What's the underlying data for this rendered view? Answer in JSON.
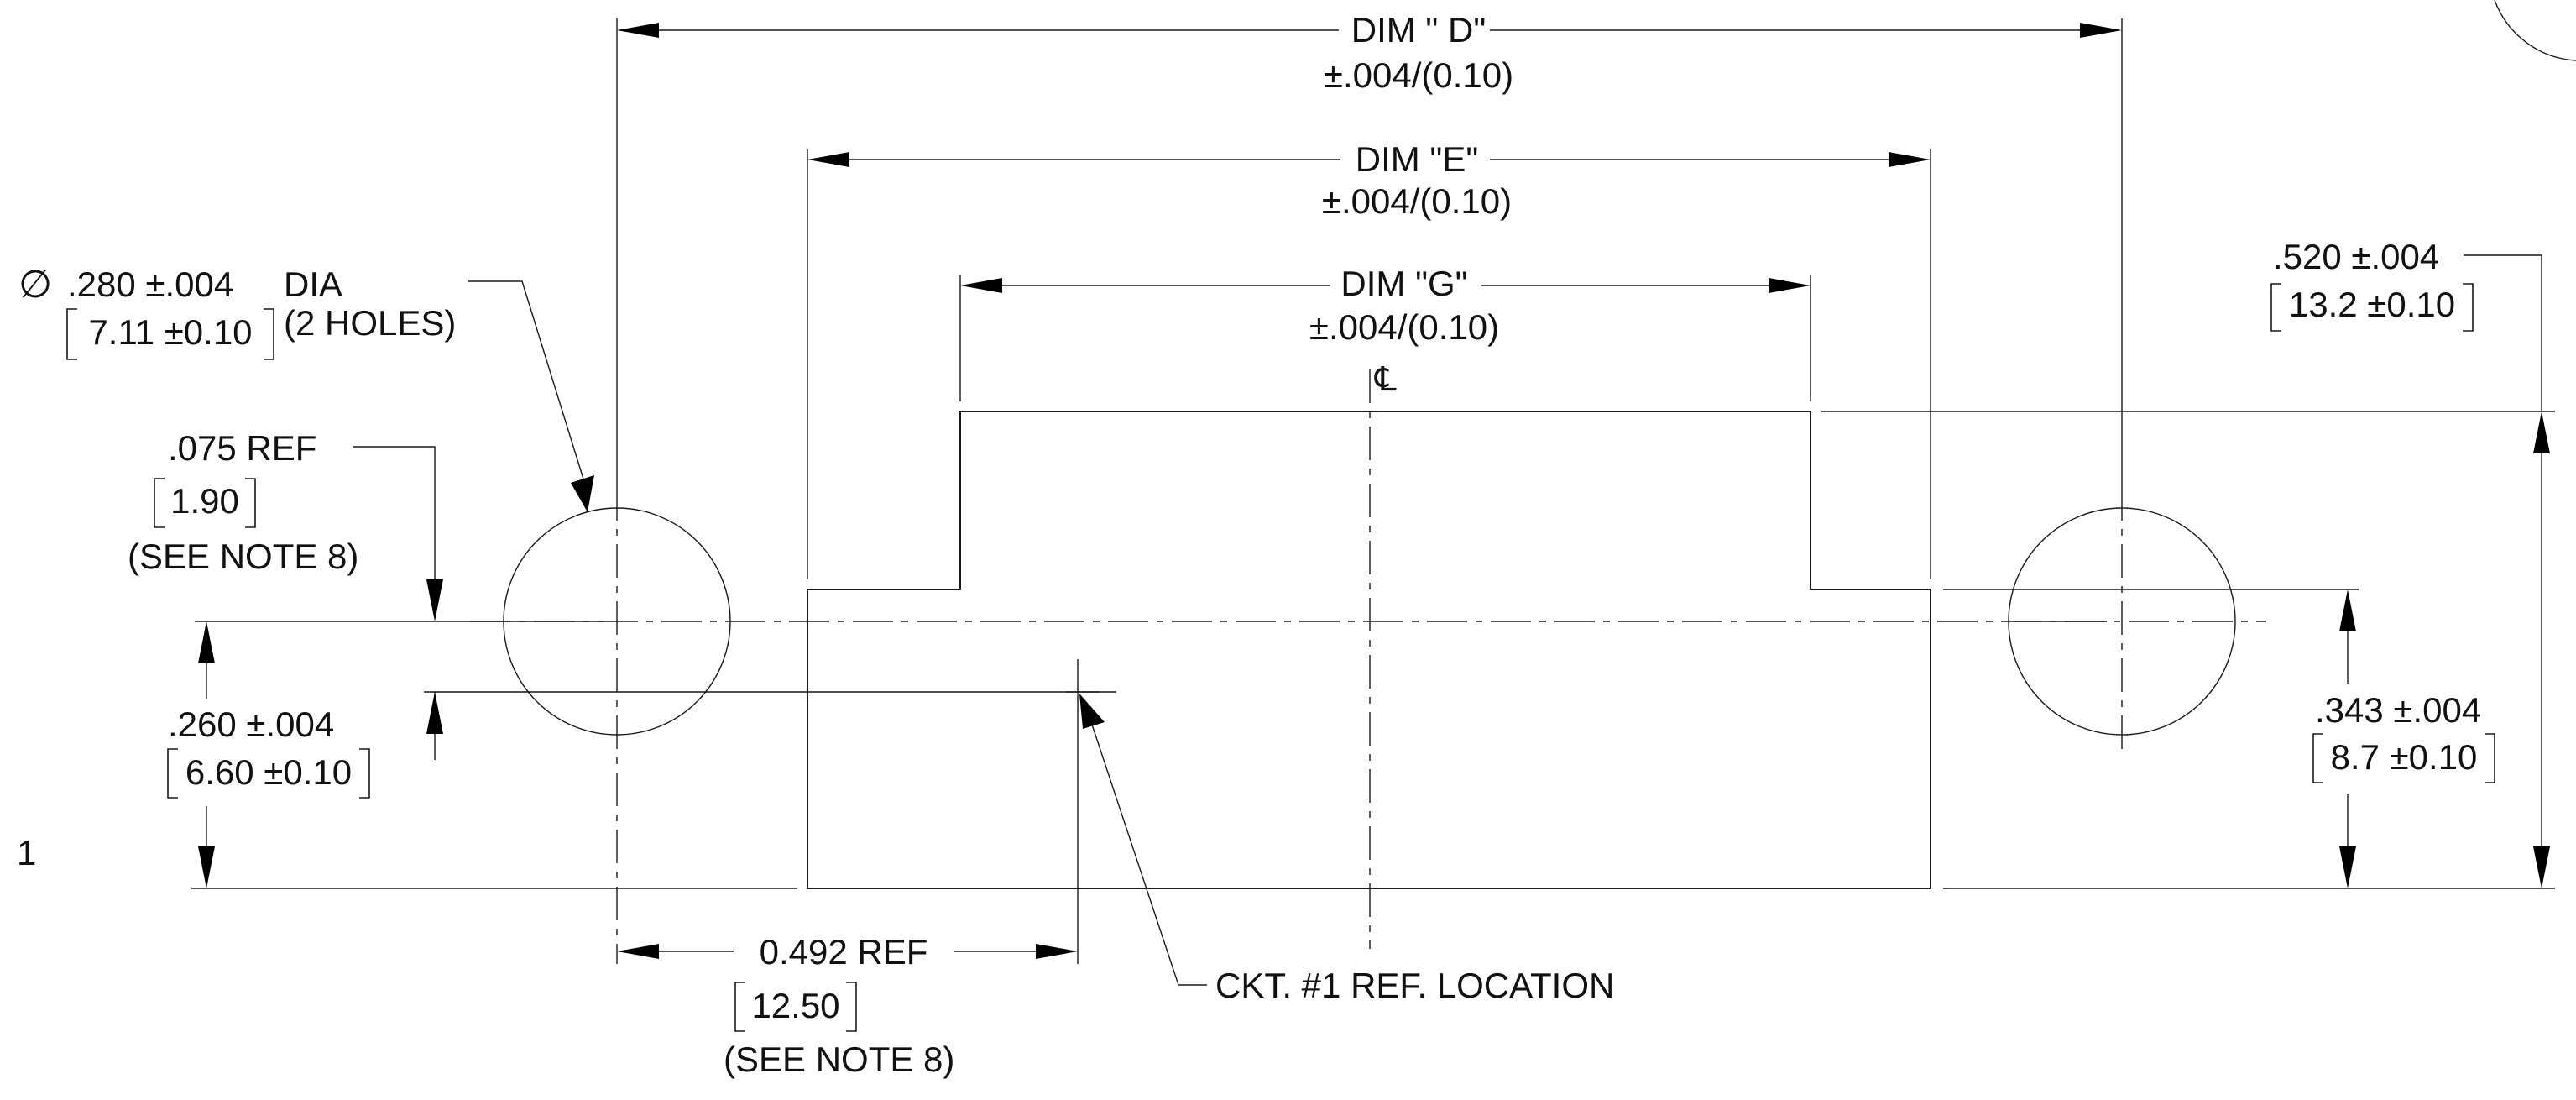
{
  "dimensions": {
    "dim_d": {
      "label": "DIM \" D\"",
      "tol": "±.004/(0.10)"
    },
    "dim_e": {
      "label": "DIM \"E\"",
      "tol": "±.004/(0.10)"
    },
    "dim_g": {
      "label": "DIM \"G\"",
      "tol": "±.004/(0.10)"
    },
    "hole_dia": {
      "symbol": "∅",
      "value": ".280 ±.004",
      "unit": "DIA",
      "metric": "7.11 ±0.10",
      "note": "(2 HOLES)"
    },
    "ref_075": {
      "value": ".075  REF",
      "metric": "1.90",
      "note": "(SEE NOTE 8)"
    },
    "dim_260": {
      "value": ".260 ±.004",
      "metric": "6.60 ±0.10"
    },
    "dim_520": {
      "value": ".520 ±.004",
      "metric": "13.2 ±0.10"
    },
    "dim_343": {
      "value": ".343 ±.004",
      "metric": "8.7 ±0.10"
    },
    "ref_0492": {
      "value": "0.492  REF",
      "metric": "12.50",
      "note": "(SEE NOTE 8)"
    },
    "ckt_ref": {
      "label": "CKT. #1 REF. LOCATION"
    },
    "centerline_symbol": "℄",
    "edge_number": "1"
  }
}
